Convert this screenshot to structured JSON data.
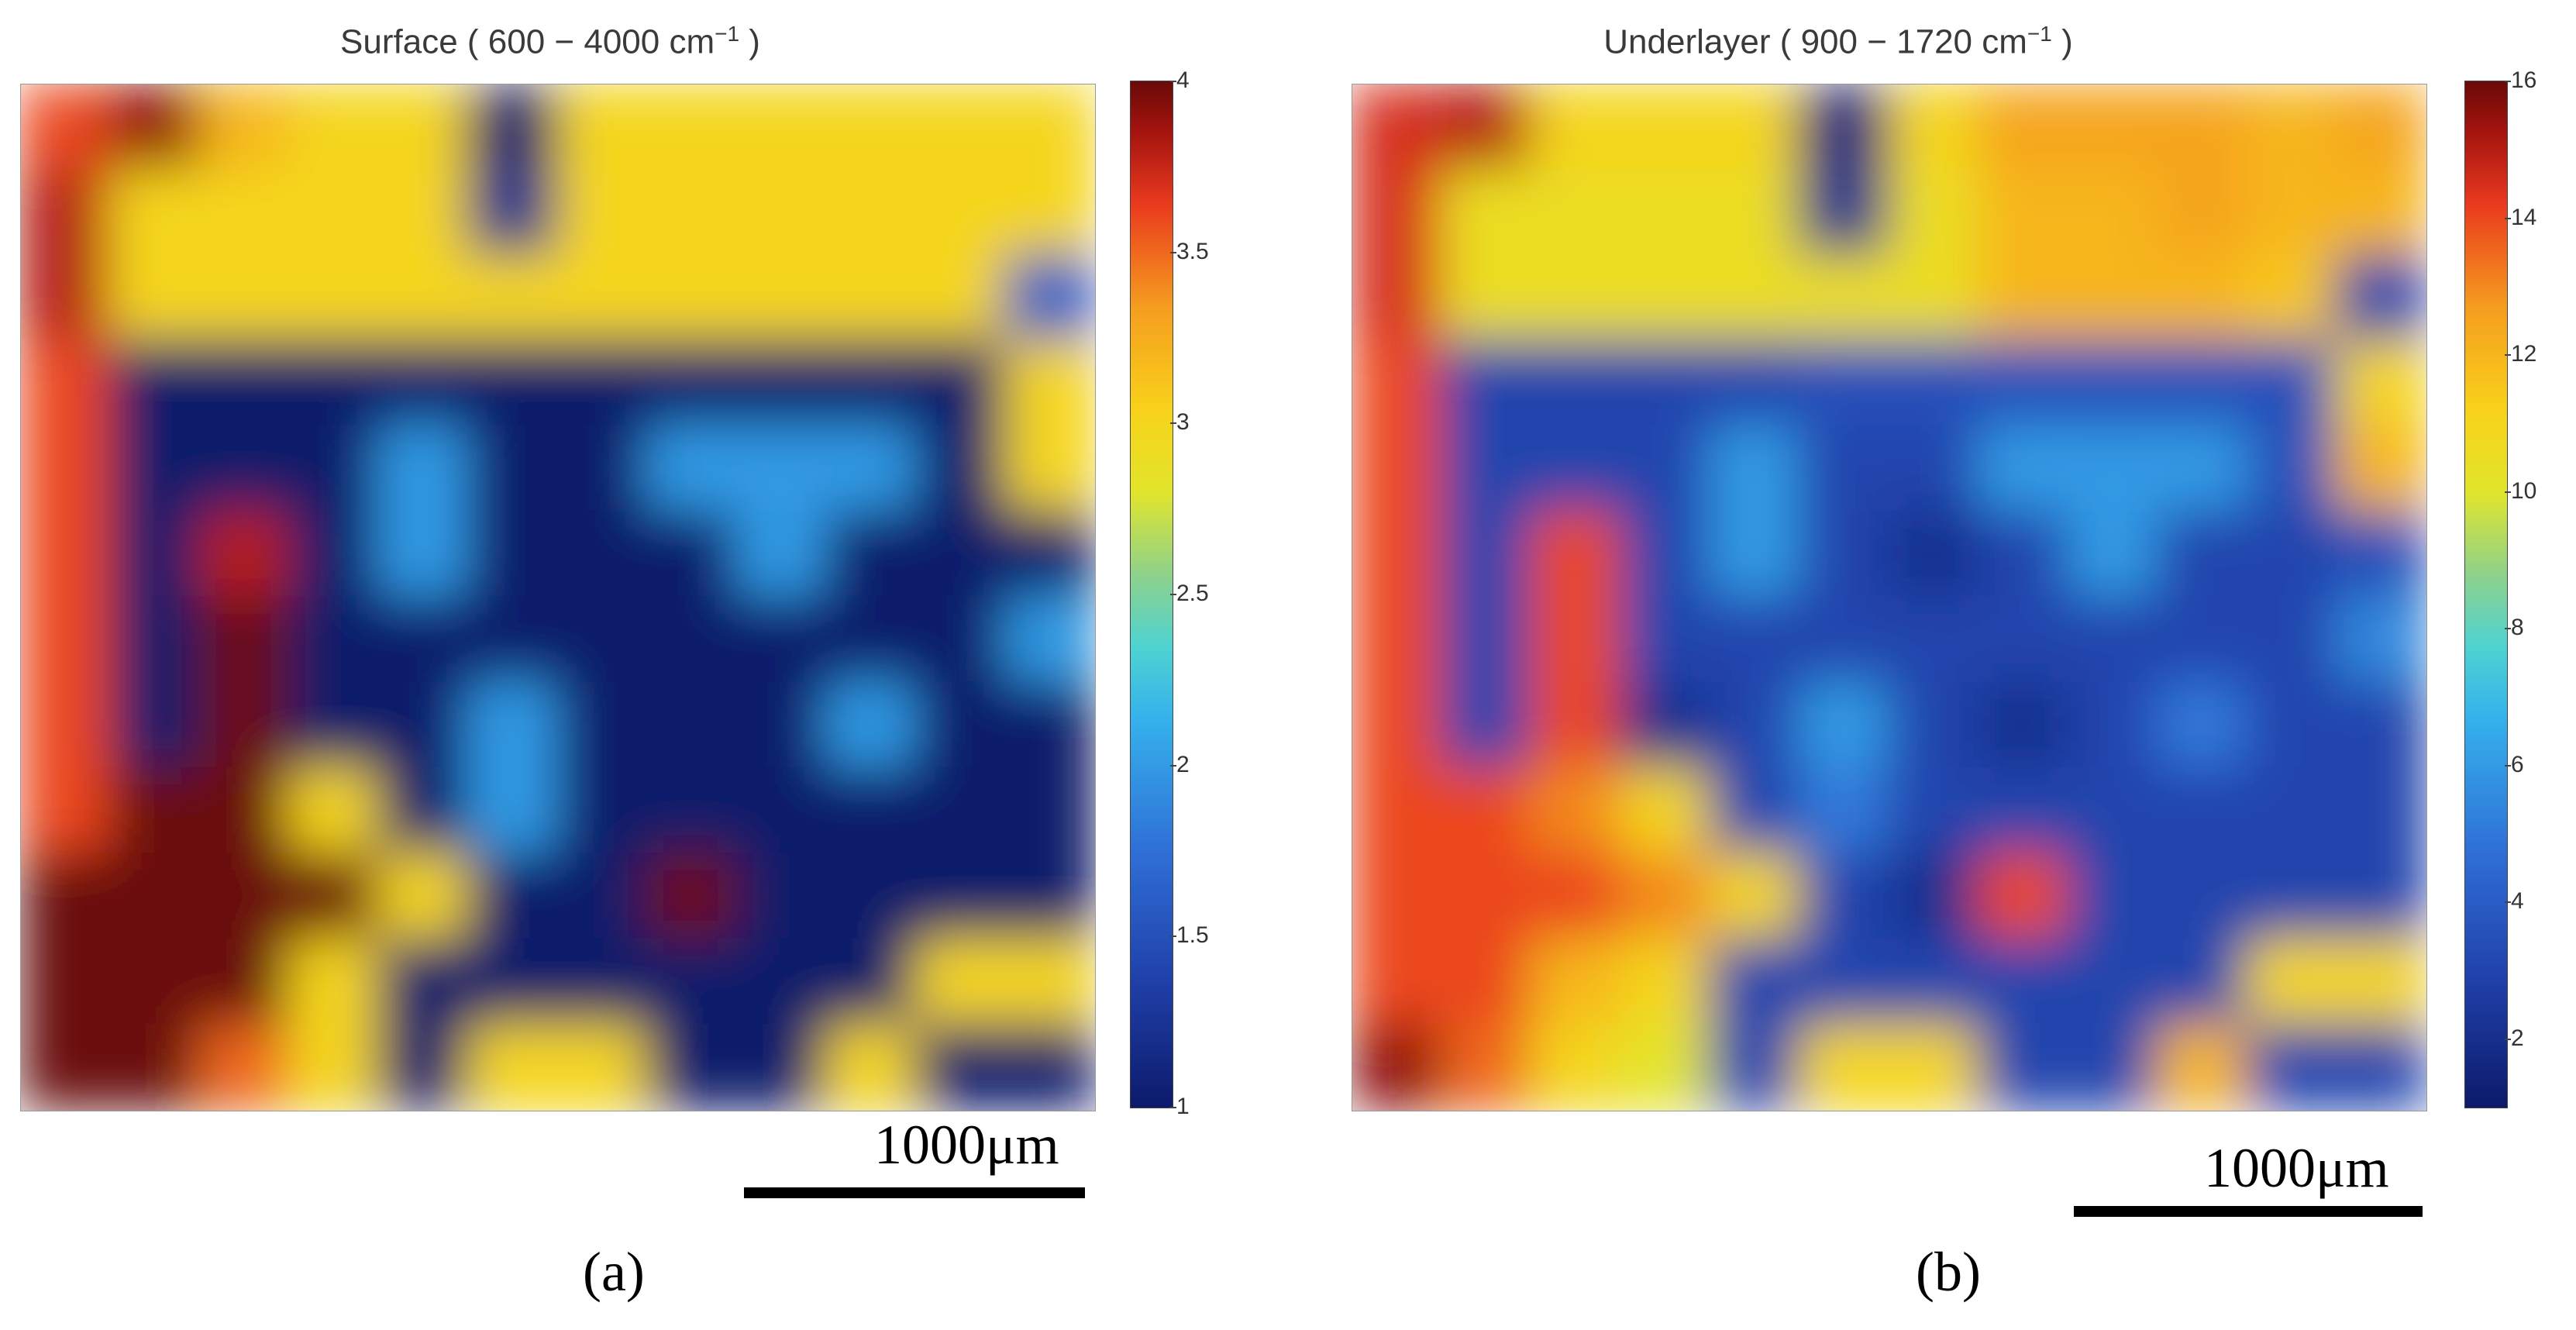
{
  "figure": {
    "panels": [
      {
        "id": "a",
        "title_main": "Surface ( 600 − 4000 cm",
        "title_sup": "−1",
        "title_end": " )",
        "scalebar_label": "1000μm",
        "panel_label": "(a)",
        "colorbar_ticks": [
          "4",
          "3.5",
          "3",
          "2.5",
          "2",
          "1.5",
          "1"
        ]
      },
      {
        "id": "b",
        "title_main": "Underlayer ( 900 − 1720 cm",
        "title_sup": "−1",
        "title_end": " )",
        "scalebar_label": "1000μm",
        "panel_label": "(b)",
        "colorbar_ticks": [
          "16",
          "14",
          "12",
          "10",
          "8",
          "6",
          "4",
          "2"
        ]
      }
    ]
  },
  "chart_data": [
    {
      "type": "heatmap",
      "title": "Surface ( 600 − 4000 cm−1 )",
      "colorbar": {
        "min": 1,
        "max": 4,
        "ticks": [
          1,
          1.5,
          2,
          2.5,
          3,
          3.5,
          4
        ],
        "colormap": "jet"
      },
      "grid_rows": 12,
      "grid_cols": 12,
      "values": [
        [
          3.6,
          3.9,
          3.2,
          3.0,
          3.0,
          1.0,
          3.0,
          3.0,
          3.0,
          3.0,
          3.0,
          3.0
        ],
        [
          3.8,
          3.0,
          3.0,
          3.0,
          3.0,
          1.2,
          3.0,
          3.0,
          3.0,
          3.0,
          3.0,
          3.0
        ],
        [
          3.8,
          3.0,
          3.0,
          3.0,
          3.0,
          3.0,
          3.0,
          3.0,
          3.0,
          3.0,
          3.0,
          1.6
        ],
        [
          3.6,
          1.0,
          1.0,
          1.0,
          1.0,
          1.0,
          1.0,
          1.0,
          1.0,
          1.0,
          1.0,
          3.0
        ],
        [
          3.6,
          1.0,
          1.0,
          1.0,
          2.0,
          1.0,
          1.0,
          2.0,
          2.0,
          2.0,
          1.0,
          3.0
        ],
        [
          3.6,
          1.0,
          3.8,
          1.0,
          2.0,
          1.0,
          1.0,
          1.0,
          2.0,
          1.0,
          1.0,
          1.0
        ],
        [
          3.6,
          1.0,
          4.0,
          1.0,
          1.0,
          1.0,
          1.0,
          1.0,
          1.0,
          1.0,
          1.0,
          2.0
        ],
        [
          3.6,
          1.0,
          4.0,
          1.0,
          1.0,
          2.0,
          1.0,
          1.0,
          1.0,
          2.0,
          1.0,
          1.0
        ],
        [
          3.6,
          4.0,
          4.0,
          3.0,
          1.0,
          2.0,
          1.0,
          1.0,
          1.0,
          1.0,
          1.0,
          1.0
        ],
        [
          4.0,
          4.0,
          4.0,
          4.0,
          3.0,
          1.0,
          1.0,
          4.0,
          1.0,
          1.0,
          1.0,
          1.0
        ],
        [
          4.0,
          4.0,
          4.0,
          3.0,
          1.0,
          1.0,
          1.0,
          1.0,
          1.0,
          1.0,
          3.0,
          3.0
        ],
        [
          4.0,
          4.0,
          3.5,
          3.0,
          1.0,
          3.0,
          3.0,
          1.0,
          1.0,
          3.0,
          1.0,
          1.0
        ]
      ],
      "scalebar": "1000μm",
      "panel_label": "(a)"
    },
    {
      "type": "heatmap",
      "title": "Underlayer ( 900 − 1720 cm−1 )",
      "colorbar": {
        "min": 1,
        "max": 16,
        "ticks": [
          2,
          4,
          6,
          8,
          10,
          12,
          14,
          16
        ],
        "colormap": "jet"
      },
      "grid_rows": 12,
      "grid_cols": 12,
      "values": [
        [
          14.5,
          15.0,
          11.0,
          11.0,
          11.0,
          1.5,
          11.0,
          12.5,
          12.5,
          12.5,
          12.0,
          12.5
        ],
        [
          14.5,
          10.5,
          10.5,
          10.5,
          10.5,
          2.0,
          10.5,
          12.0,
          12.0,
          12.5,
          12.0,
          12.0
        ],
        [
          14.5,
          10.5,
          10.5,
          10.5,
          10.5,
          10.5,
          10.5,
          12.0,
          12.0,
          12.0,
          11.5,
          3.0
        ],
        [
          14.0,
          3.0,
          3.0,
          3.0,
          3.0,
          3.5,
          3.5,
          3.5,
          3.5,
          3.5,
          3.5,
          11.0
        ],
        [
          14.0,
          3.0,
          3.0,
          3.0,
          6.0,
          3.0,
          3.0,
          6.0,
          6.0,
          6.0,
          3.5,
          12.0
        ],
        [
          14.0,
          3.0,
          14.0,
          3.0,
          6.0,
          3.0,
          2.0,
          3.0,
          6.0,
          3.0,
          3.0,
          3.5
        ],
        [
          14.0,
          3.0,
          14.0,
          3.0,
          3.0,
          3.0,
          3.0,
          3.0,
          3.0,
          3.0,
          3.0,
          5.5
        ],
        [
          14.0,
          3.0,
          14.0,
          2.0,
          3.0,
          6.0,
          3.0,
          2.0,
          3.0,
          5.0,
          3.0,
          3.0
        ],
        [
          14.0,
          14.0,
          13.0,
          11.0,
          3.0,
          5.0,
          3.0,
          3.0,
          3.0,
          3.0,
          3.0,
          3.0
        ],
        [
          14.0,
          14.0,
          14.0,
          13.0,
          11.0,
          3.0,
          2.0,
          14.0,
          3.0,
          3.0,
          3.0,
          3.0
        ],
        [
          14.0,
          14.0,
          12.0,
          11.0,
          3.0,
          3.0,
          3.0,
          3.0,
          3.0,
          3.0,
          11.0,
          11.0
        ],
        [
          15.5,
          13.5,
          11.0,
          10.0,
          3.0,
          11.0,
          11.0,
          3.0,
          3.0,
          12.0,
          3.0,
          3.0
        ]
      ],
      "scalebar": "1000μm",
      "panel_label": "(b)"
    }
  ]
}
